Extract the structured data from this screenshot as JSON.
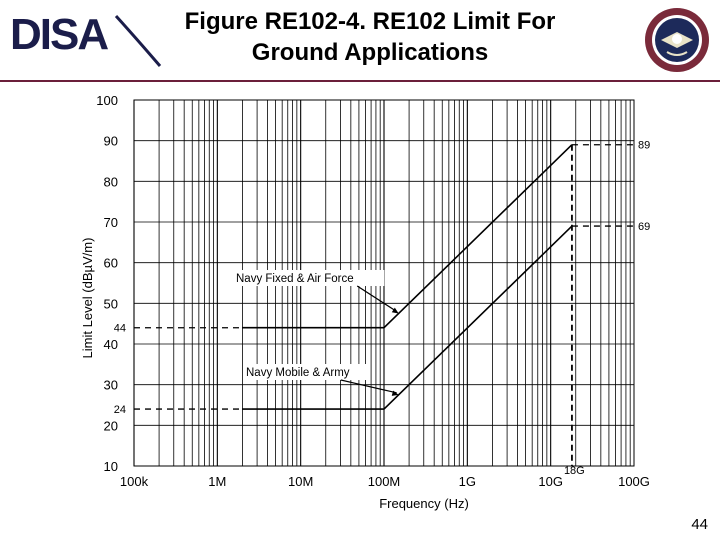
{
  "header": {
    "logo_text": "DISA",
    "title_line1": "Figure RE102-4. RE102 Limit For",
    "title_line2": "Ground Applications",
    "seal_icon": "dod-seal-icon"
  },
  "footer": {
    "slide_number": "44"
  },
  "colors": {
    "rule": "#6b1f3a",
    "logo": "#1b1d4a",
    "seal": "#7a2a3a"
  },
  "chart_data": {
    "type": "line",
    "title": "",
    "xlabel": "Frequency (Hz)",
    "ylabel": "Limit Level (dBµV/m)",
    "xscale": "log",
    "xlim": [
      100000,
      100000000000
    ],
    "ylim": [
      10,
      100
    ],
    "x_ticks": [
      {
        "value": 100000,
        "label": "100k"
      },
      {
        "value": 1000000,
        "label": "1M"
      },
      {
        "value": 10000000,
        "label": "10M"
      },
      {
        "value": 100000000,
        "label": "100M"
      },
      {
        "value": 1000000000,
        "label": "1G"
      },
      {
        "value": 10000000000,
        "label": "10G"
      },
      {
        "value": 100000000000,
        "label": "100G"
      }
    ],
    "y_ticks": [
      10,
      20,
      30,
      40,
      50,
      60,
      70,
      80,
      90,
      100
    ],
    "grid": true,
    "series": [
      {
        "name": "Navy Fixed & Air Force",
        "x": [
          2000000,
          100000000,
          18000000000
        ],
        "y": [
          44,
          44,
          89
        ]
      },
      {
        "name": "Navy Mobile & Army",
        "x": [
          2000000,
          100000000,
          18000000000
        ],
        "y": [
          24,
          24,
          69
        ]
      }
    ],
    "annotations": [
      {
        "text": "89",
        "x": 18000000000,
        "y": 89
      },
      {
        "text": "69",
        "x": 18000000000,
        "y": 69
      },
      {
        "text": "44",
        "x": 100000,
        "y": 44
      },
      {
        "text": "24",
        "x": 100000,
        "y": 24
      },
      {
        "text": "18G",
        "x": 18000000000,
        "y": 10
      }
    ]
  }
}
